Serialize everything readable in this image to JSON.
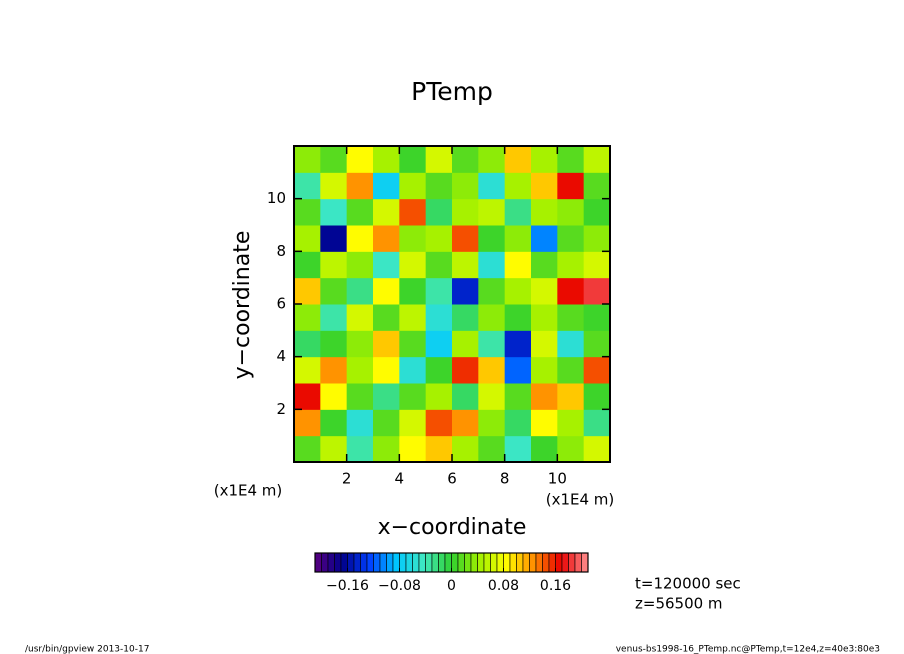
{
  "chart_data": {
    "type": "heatmap",
    "title": "PTemp",
    "xlabel": "x−coordinate",
    "ylabel": "y−coordinate",
    "x_unit": "(x1E4 m)",
    "y_unit": "(x1E4 m)",
    "xlim": [
      0,
      12
    ],
    "ylim": [
      0,
      12
    ],
    "xticks": [
      2,
      4,
      6,
      8,
      10
    ],
    "yticks": [
      2,
      4,
      6,
      8,
      10
    ],
    "x": [
      0.5,
      1.5,
      2.5,
      3.5,
      4.5,
      5.5,
      6.5,
      7.5,
      8.5,
      9.5,
      10.5,
      11.5
    ],
    "y": [
      0.5,
      1.5,
      2.5,
      3.5,
      4.5,
      5.5,
      6.5,
      7.5,
      8.5,
      9.5,
      10.5,
      11.5
    ],
    "z": [
      [
        0.02,
        0.05,
        -0.04,
        0.03,
        0.08,
        0.1,
        0.04,
        0.02,
        -0.05,
        0.0,
        0.03,
        0.06
      ],
      [
        0.12,
        0.0,
        -0.06,
        0.02,
        0.06,
        0.14,
        0.12,
        0.03,
        -0.02,
        0.08,
        0.04,
        -0.03
      ],
      [
        0.16,
        0.08,
        0.02,
        -0.03,
        0.02,
        0.04,
        -0.02,
        0.06,
        0.02,
        0.12,
        0.1,
        0.0
      ],
      [
        0.06,
        0.12,
        0.04,
        0.08,
        -0.06,
        0.0,
        0.15,
        0.1,
        -0.12,
        0.04,
        0.02,
        0.14
      ],
      [
        -0.02,
        0.0,
        0.03,
        0.1,
        0.02,
        -0.08,
        0.04,
        -0.04,
        -0.14,
        0.06,
        -0.06,
        0.02
      ],
      [
        0.03,
        -0.04,
        0.06,
        0.02,
        0.05,
        -0.06,
        -0.02,
        0.03,
        0.0,
        0.04,
        0.02,
        0.0
      ],
      [
        0.1,
        0.02,
        -0.03,
        0.08,
        0.0,
        -0.04,
        -0.14,
        0.02,
        0.04,
        0.06,
        0.16,
        0.18
      ],
      [
        0.0,
        0.05,
        0.03,
        -0.05,
        0.06,
        0.02,
        0.05,
        -0.06,
        0.08,
        0.02,
        0.04,
        0.06
      ],
      [
        0.04,
        -0.16,
        0.08,
        0.12,
        0.03,
        0.04,
        0.14,
        0.0,
        0.03,
        -0.1,
        0.02,
        0.03
      ],
      [
        0.02,
        -0.05,
        0.02,
        0.06,
        0.14,
        -0.02,
        0.04,
        0.05,
        -0.03,
        0.04,
        0.03,
        0.0
      ],
      [
        -0.04,
        0.06,
        0.12,
        -0.08,
        0.04,
        0.02,
        0.03,
        -0.06,
        0.04,
        0.1,
        0.16,
        0.02
      ],
      [
        0.03,
        0.02,
        0.08,
        0.04,
        0.0,
        0.06,
        0.02,
        0.03,
        0.1,
        0.04,
        0.02,
        0.05
      ]
    ],
    "clim": [
      -0.21,
      0.21
    ],
    "color_levels": 42,
    "colormap": [
      "#5a0080",
      "#00008c",
      "#0040ff",
      "#00c8ff",
      "#40e8c0",
      "#30d030",
      "#a0f000",
      "#ffff00",
      "#ff9000",
      "#e80000",
      "#ff9090"
    ],
    "cticks": [
      {
        "value": -0.16,
        "label": "−0.16"
      },
      {
        "value": -0.08,
        "label": "−0.08"
      },
      0,
      0.08,
      0.16
    ],
    "annotations": [
      "t=120000 sec",
      "z=56500 m"
    ],
    "footer_left": "/usr/bin/gpview   2013-10-17",
    "footer_right": "venus-bs1998-16_PTemp.nc@PTemp,t=12e4,z=40e3:80e3"
  }
}
